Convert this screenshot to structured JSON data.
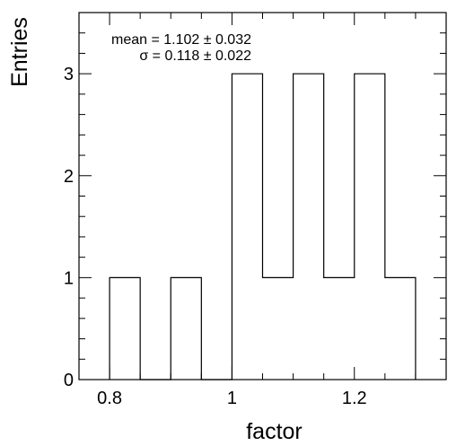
{
  "chart_data": {
    "type": "bar",
    "style": "histogram",
    "xlabel": "factor",
    "ylabel": "Entries",
    "xlim": [
      0.75,
      1.35
    ],
    "ylim": [
      0,
      3.6
    ],
    "bin_width": 0.05,
    "bins": [
      {
        "low": 0.8,
        "high": 0.85,
        "count": 1
      },
      {
        "low": 0.85,
        "high": 0.9,
        "count": 0
      },
      {
        "low": 0.9,
        "high": 0.95,
        "count": 1
      },
      {
        "low": 0.95,
        "high": 1.0,
        "count": 0
      },
      {
        "low": 1.0,
        "high": 1.05,
        "count": 3
      },
      {
        "low": 1.05,
        "high": 1.1,
        "count": 1
      },
      {
        "low": 1.1,
        "high": 1.15,
        "count": 3
      },
      {
        "low": 1.15,
        "high": 1.2,
        "count": 1
      },
      {
        "low": 1.2,
        "high": 1.25,
        "count": 3
      },
      {
        "low": 1.25,
        "high": 1.3,
        "count": 1
      }
    ],
    "x_ticks": [
      {
        "value": 0.8,
        "label": "0.8"
      },
      {
        "value": 1.0,
        "label": "1"
      },
      {
        "value": 1.2,
        "label": "1.2"
      }
    ],
    "y_ticks": [
      {
        "value": 0,
        "label": "0"
      },
      {
        "value": 1,
        "label": "1"
      },
      {
        "value": 2,
        "label": "2"
      },
      {
        "value": 3,
        "label": "3"
      }
    ],
    "x_minor_step": 0.05,
    "y_minor_step": 0.2,
    "grid": false,
    "annotations": {
      "mean": "mean = 1.102 ± 0.032",
      "sigma": "σ = 0.118 ± 0.022"
    },
    "colors": {
      "line": "#000000",
      "fill": "none",
      "background": "#ffffff"
    }
  }
}
